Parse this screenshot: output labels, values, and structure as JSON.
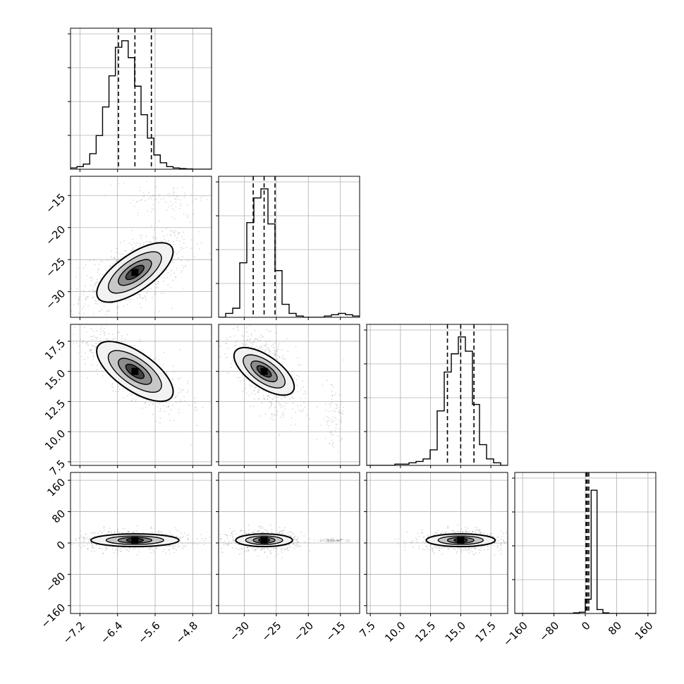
{
  "chart_data": {
    "type": "corner",
    "n_params": 4,
    "grid": true,
    "quantile_lines": "dashed",
    "params": [
      {
        "range": [
          -7.4,
          -4.4
        ],
        "ticks": [
          "−7.2",
          "−6.4",
          "−5.6",
          "−4.8"
        ],
        "tick_values": [
          -7.2,
          -6.4,
          -5.6,
          -4.8
        ],
        "quantiles": [
          -6.38,
          -6.03,
          -5.68
        ],
        "hist": [
          0.01,
          0.02,
          0.04,
          0.12,
          0.26,
          0.48,
          0.72,
          0.94,
          0.99,
          0.86,
          0.64,
          0.42,
          0.24,
          0.11,
          0.05,
          0.02,
          0.01,
          0.005,
          0.002,
          0.0,
          0.0,
          0.0
        ]
      },
      {
        "range": [
          -34,
          -12
        ],
        "ticks": [
          "−30",
          "−25",
          "−20",
          "−15"
        ],
        "tick_values": [
          -30,
          -25,
          -20,
          -15
        ],
        "quantiles": [
          -28.6,
          -26.9,
          -25.2
        ],
        "hist": [
          0.0,
          0.03,
          0.07,
          0.42,
          0.73,
          0.92,
          0.99,
          0.72,
          0.36,
          0.1,
          0.03,
          0.01,
          0.0,
          0.0,
          0.0,
          0.01,
          0.02,
          0.03,
          0.02,
          0.01
        ]
      },
      {
        "range": [
          7.2,
          18.9
        ],
        "ticks": [
          "7.5",
          "10.0",
          "12.5",
          "15.0",
          "17.5"
        ],
        "tick_values": [
          7.5,
          10.0,
          12.5,
          15.0,
          17.5
        ],
        "quantiles": [
          13.9,
          15.0,
          16.1
        ],
        "hist": [
          0.0,
          0.0,
          0.0,
          0.0,
          0.01,
          0.01,
          0.02,
          0.03,
          0.05,
          0.12,
          0.42,
          0.72,
          0.86,
          0.99,
          0.88,
          0.47,
          0.16,
          0.05,
          0.02,
          0.0
        ]
      },
      {
        "range": [
          -180,
          180
        ],
        "ticks": [
          "−160",
          "−80",
          "0",
          "80",
          "160"
        ],
        "tick_values": [
          -160,
          -80,
          0,
          80,
          160
        ],
        "quantiles": [
          2,
          5,
          9
        ],
        "hist": [
          0.0,
          0.0,
          0.0,
          0.0,
          0.0,
          0.0,
          0.0,
          0.0,
          0.0,
          0.0,
          0.005,
          0.01,
          0.11,
          0.95,
          0.03,
          0.005,
          0.0,
          0.0,
          0.0,
          0.0,
          0.0,
          0.0,
          0.0,
          0.0
        ]
      }
    ],
    "pairs": [
      {
        "row": 1,
        "col": 0,
        "mean": [
          -6.03,
          -27.0
        ],
        "sd": [
          0.36,
          2.0
        ],
        "corr": 0.55,
        "cluster": {
          "mean": [
            -5.4,
            -15.5
          ],
          "sd": [
            0.55,
            1.1
          ]
        }
      },
      {
        "row": 2,
        "col": 0,
        "mean": [
          -6.03,
          15.0
        ],
        "sd": [
          0.36,
          1.1
        ],
        "corr": -0.75
      },
      {
        "row": 3,
        "col": 0,
        "mean": [
          -6.03,
          7.0
        ],
        "sd": [
          0.36,
          8.0
        ],
        "corr": 0.0
      },
      {
        "row": 2,
        "col": 1,
        "mean": [
          -26.9,
          15.0
        ],
        "sd": [
          1.7,
          1.1
        ],
        "corr": -0.6,
        "cluster": {
          "mean": [
            -16.0,
            11.5
          ],
          "sd": [
            0.9,
            1.3
          ]
        }
      },
      {
        "row": 3,
        "col": 1,
        "mean": [
          -26.9,
          7.0
        ],
        "sd": [
          1.7,
          8.0
        ],
        "corr": 0.0,
        "cluster": {
          "mean": [
            -16.0,
            7.0
          ],
          "sd": [
            1.2,
            2.0
          ]
        }
      },
      {
        "row": 3,
        "col": 2,
        "mean": [
          15.0,
          7.0
        ],
        "sd": [
          1.1,
          8.0
        ],
        "corr": 0.0
      }
    ]
  }
}
